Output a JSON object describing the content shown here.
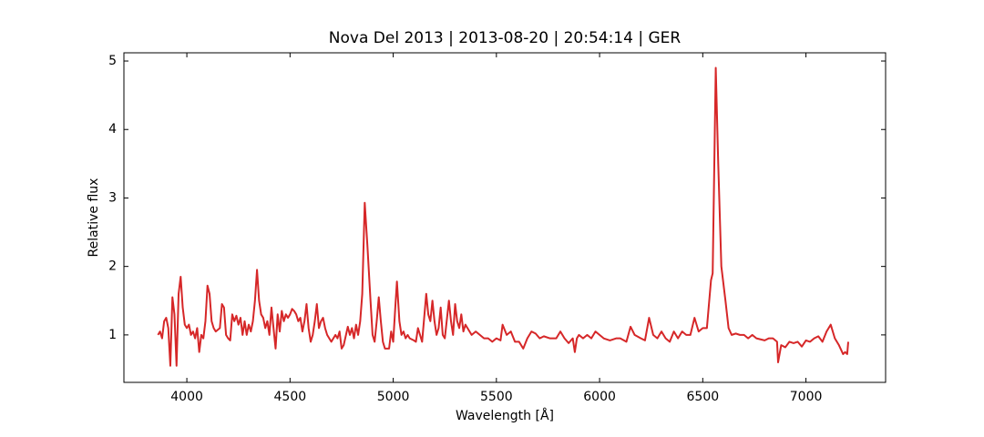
{
  "chart_data": {
    "type": "line",
    "title": "Nova Del 2013 | 2013-08-20 | 20:54:14 | GER",
    "xlabel": "Wavelength [Å]",
    "ylabel": "Relative flux",
    "x": [
      3860,
      3870,
      3880,
      3890,
      3900,
      3910,
      3920,
      3930,
      3940,
      3950,
      3960,
      3970,
      3980,
      3990,
      4000,
      4010,
      4020,
      4030,
      4040,
      4050,
      4060,
      4070,
      4080,
      4090,
      4100,
      4110,
      4120,
      4130,
      4140,
      4160,
      4170,
      4180,
      4190,
      4200,
      4210,
      4220,
      4230,
      4240,
      4250,
      4260,
      4270,
      4280,
      4290,
      4300,
      4310,
      4320,
      4330,
      4340,
      4350,
      4360,
      4370,
      4380,
      4390,
      4400,
      4410,
      4420,
      4430,
      4440,
      4450,
      4460,
      4470,
      4480,
      4490,
      4500,
      4510,
      4520,
      4530,
      4540,
      4550,
      4560,
      4570,
      4580,
      4590,
      4600,
      4610,
      4620,
      4630,
      4640,
      4650,
      4660,
      4670,
      4680,
      4700,
      4720,
      4730,
      4740,
      4750,
      4760,
      4780,
      4790,
      4800,
      4810,
      4820,
      4830,
      4840,
      4850,
      4862,
      4875,
      4890,
      4900,
      4910,
      4920,
      4930,
      4940,
      4950,
      4960,
      4980,
      4990,
      5000,
      5010,
      5018,
      5030,
      5040,
      5050,
      5060,
      5070,
      5080,
      5100,
      5110,
      5120,
      5130,
      5140,
      5160,
      5170,
      5180,
      5190,
      5200,
      5210,
      5220,
      5230,
      5240,
      5250,
      5270,
      5280,
      5290,
      5300,
      5310,
      5320,
      5330,
      5340,
      5350,
      5360,
      5380,
      5400,
      5420,
      5440,
      5460,
      5480,
      5500,
      5520,
      5530,
      5550,
      5570,
      5590,
      5610,
      5630,
      5650,
      5670,
      5690,
      5710,
      5730,
      5760,
      5790,
      5810,
      5830,
      5850,
      5870,
      5880,
      5890,
      5900,
      5920,
      5940,
      5960,
      5980,
      6000,
      6020,
      6050,
      6080,
      6100,
      6130,
      6150,
      6170,
      6200,
      6220,
      6240,
      6260,
      6280,
      6300,
      6320,
      6340,
      6360,
      6380,
      6400,
      6420,
      6440,
      6460,
      6480,
      6500,
      6520,
      6540,
      6548,
      6563,
      6575,
      6590,
      6610,
      6625,
      6640,
      6660,
      6680,
      6700,
      6720,
      6740,
      6760,
      6800,
      6820,
      6840,
      6860,
      6865,
      6880,
      6900,
      6920,
      6940,
      6960,
      6980,
      7000,
      7020,
      7040,
      7060,
      7080,
      7100,
      7120,
      7140,
      7160,
      7180,
      7190,
      7200,
      7205
    ],
    "series": [
      {
        "name": "Nova Del 2013",
        "color": "#d62728",
        "values": [
          1.0,
          1.05,
          0.95,
          1.2,
          1.25,
          1.1,
          0.55,
          1.55,
          1.3,
          0.55,
          1.6,
          1.85,
          1.4,
          1.15,
          1.1,
          1.15,
          1.0,
          1.05,
          0.95,
          1.1,
          0.75,
          1.0,
          0.95,
          1.2,
          1.72,
          1.6,
          1.2,
          1.1,
          1.05,
          1.1,
          1.45,
          1.4,
          1.0,
          0.95,
          0.92,
          1.3,
          1.2,
          1.28,
          1.15,
          1.25,
          1.0,
          1.2,
          1.0,
          1.15,
          1.05,
          1.2,
          1.5,
          1.95,
          1.5,
          1.3,
          1.25,
          1.1,
          1.2,
          1.0,
          1.4,
          1.1,
          0.8,
          1.3,
          1.05,
          1.35,
          1.2,
          1.3,
          1.25,
          1.3,
          1.38,
          1.35,
          1.3,
          1.2,
          1.25,
          1.05,
          1.2,
          1.45,
          1.1,
          0.9,
          1.0,
          1.2,
          1.45,
          1.1,
          1.2,
          1.25,
          1.1,
          1.0,
          0.9,
          1.0,
          0.95,
          1.05,
          0.8,
          0.85,
          1.12,
          1.0,
          1.1,
          0.95,
          1.15,
          1.0,
          1.2,
          1.6,
          2.93,
          2.3,
          1.5,
          1.0,
          0.9,
          1.2,
          1.55,
          1.2,
          0.9,
          0.8,
          0.8,
          1.05,
          0.9,
          1.4,
          1.78,
          1.2,
          1.0,
          1.05,
          0.95,
          1.0,
          0.95,
          0.92,
          0.9,
          1.1,
          1.0,
          0.9,
          1.6,
          1.3,
          1.2,
          1.5,
          1.2,
          1.0,
          1.1,
          1.4,
          1.0,
          0.95,
          1.5,
          1.2,
          1.0,
          1.45,
          1.2,
          1.1,
          1.3,
          1.05,
          1.15,
          1.1,
          1.0,
          1.05,
          1.0,
          0.95,
          0.95,
          0.9,
          0.95,
          0.92,
          1.15,
          1.0,
          1.05,
          0.9,
          0.9,
          0.8,
          0.95,
          1.05,
          1.02,
          0.95,
          0.98,
          0.95,
          0.95,
          1.05,
          0.95,
          0.88,
          0.95,
          0.75,
          0.95,
          1.0,
          0.95,
          1.0,
          0.95,
          1.05,
          1.0,
          0.95,
          0.92,
          0.95,
          0.95,
          0.9,
          1.12,
          1.0,
          0.95,
          0.92,
          1.25,
          1.0,
          0.95,
          1.05,
          0.95,
          0.9,
          1.05,
          0.95,
          1.05,
          1.0,
          1.0,
          1.25,
          1.05,
          1.1,
          1.1,
          1.8,
          1.9,
          4.9,
          3.5,
          2.0,
          1.5,
          1.1,
          1.0,
          1.02,
          1.0,
          1.0,
          0.95,
          1.0,
          0.95,
          0.92,
          0.95,
          0.95,
          0.9,
          0.6,
          0.85,
          0.82,
          0.9,
          0.88,
          0.9,
          0.83,
          0.92,
          0.9,
          0.95,
          0.98,
          0.9,
          1.05,
          1.15,
          0.95,
          0.85,
          0.72,
          0.75,
          0.72,
          0.9
        ]
      }
    ],
    "xlim": [
      3695,
      7386
    ],
    "ylim": [
      0.307,
      5.12
    ],
    "xticks": [
      4000,
      4500,
      5000,
      5500,
      6000,
      6500,
      7000
    ],
    "yticks": [
      1,
      2,
      3,
      4,
      5
    ]
  }
}
